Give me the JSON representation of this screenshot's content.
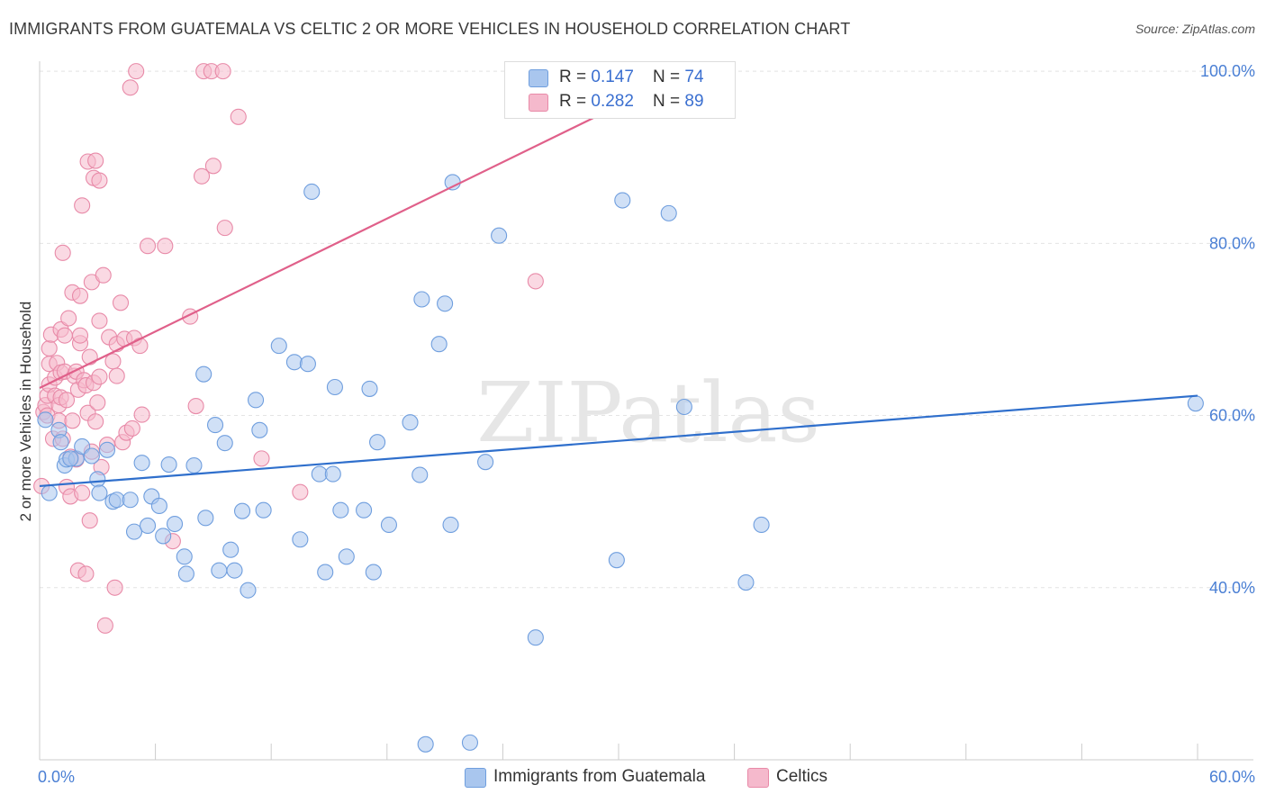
{
  "title": "IMMIGRANTS FROM GUATEMALA VS CELTIC 2 OR MORE VEHICLES IN HOUSEHOLD CORRELATION CHART",
  "source": "Source: ZipAtlas.com",
  "watermark": "ZIPatlas",
  "legend": {
    "rows": [
      {
        "r_label": "R = ",
        "r_value": "0.147",
        "n_label": "N = ",
        "n_value": "74"
      },
      {
        "r_label": "R = ",
        "r_value": "0.282",
        "n_label": "N = ",
        "n_value": "89"
      }
    ]
  },
  "bottom_legend": [
    "Immigrants from Guatemala",
    "Celtics"
  ],
  "colors": {
    "blue_fill": "#a9c6ee",
    "blue_stroke": "#6f9ede",
    "blue_line": "#2f6fcc",
    "pink_fill": "#f5b9cc",
    "pink_stroke": "#e88aa8",
    "pink_line": "#e0608a",
    "axis_text": "#4a7fd4"
  },
  "chart_data": {
    "type": "scatter",
    "title": "IMMIGRANTS FROM GUATEMALA VS CELTIC 2 OR MORE VEHICLES IN HOUSEHOLD CORRELATION CHART",
    "xlabel": "",
    "ylabel": "2 or more Vehicles in Household",
    "xlim": [
      0,
      60
    ],
    "ylim": [
      20,
      102
    ],
    "x_tick_labels": [
      "0.0%",
      "60.0%"
    ],
    "y_ticks": [
      40,
      60,
      80,
      100
    ],
    "y_tick_labels": [
      "40.0%",
      "60.0%",
      "80.0%",
      "100.0%"
    ],
    "grid": true,
    "series": [
      {
        "name": "Immigrants from Guatemala",
        "color": "#6f9ede",
        "r": 0.147,
        "n": 74,
        "trend": [
          [
            0,
            51.8
          ],
          [
            60,
            62.3
          ]
        ],
        "points": [
          [
            0.5,
            51.0
          ],
          [
            1.0,
            58.3
          ],
          [
            1.1,
            56.9
          ],
          [
            1.3,
            54.2
          ],
          [
            1.4,
            54.9
          ],
          [
            1.9,
            55.0
          ],
          [
            2.2,
            56.4
          ],
          [
            2.7,
            55.3
          ],
          [
            3.0,
            52.6
          ],
          [
            3.1,
            51.0
          ],
          [
            3.5,
            56.0
          ],
          [
            3.8,
            50.0
          ],
          [
            4.0,
            50.2
          ],
          [
            4.7,
            50.2
          ],
          [
            4.9,
            46.5
          ],
          [
            5.3,
            54.5
          ],
          [
            5.6,
            47.2
          ],
          [
            5.8,
            50.6
          ],
          [
            6.2,
            49.5
          ],
          [
            6.4,
            46.0
          ],
          [
            6.7,
            54.3
          ],
          [
            7.0,
            47.4
          ],
          [
            7.5,
            43.6
          ],
          [
            7.6,
            41.6
          ],
          [
            8.0,
            54.2
          ],
          [
            8.5,
            64.8
          ],
          [
            8.6,
            48.1
          ],
          [
            9.1,
            58.9
          ],
          [
            9.3,
            42.0
          ],
          [
            9.6,
            56.8
          ],
          [
            9.9,
            44.4
          ],
          [
            10.1,
            42.0
          ],
          [
            10.5,
            48.9
          ],
          [
            10.8,
            39.7
          ],
          [
            11.2,
            61.8
          ],
          [
            11.4,
            58.3
          ],
          [
            11.6,
            49.0
          ],
          [
            12.4,
            68.1
          ],
          [
            13.2,
            66.2
          ],
          [
            13.5,
            45.6
          ],
          [
            13.9,
            66.0
          ],
          [
            14.1,
            86.0
          ],
          [
            14.5,
            53.2
          ],
          [
            14.8,
            41.8
          ],
          [
            15.2,
            53.2
          ],
          [
            15.3,
            63.3
          ],
          [
            15.6,
            49.0
          ],
          [
            15.9,
            43.6
          ],
          [
            16.8,
            49.0
          ],
          [
            17.1,
            63.1
          ],
          [
            17.3,
            41.8
          ],
          [
            17.5,
            56.9
          ],
          [
            18.1,
            47.3
          ],
          [
            19.2,
            59.2
          ],
          [
            19.7,
            53.1
          ],
          [
            19.8,
            73.5
          ],
          [
            20.0,
            21.8
          ],
          [
            20.7,
            68.3
          ],
          [
            21.0,
            73.0
          ],
          [
            21.3,
            47.3
          ],
          [
            21.4,
            87.1
          ],
          [
            22.3,
            22.0
          ],
          [
            23.1,
            54.6
          ],
          [
            23.8,
            80.9
          ],
          [
            25.7,
            34.2
          ],
          [
            29.9,
            43.2
          ],
          [
            30.2,
            85.0
          ],
          [
            32.6,
            83.5
          ],
          [
            33.4,
            61.0
          ],
          [
            36.6,
            40.6
          ],
          [
            37.4,
            47.3
          ],
          [
            59.9,
            61.4
          ],
          [
            0.3,
            59.5
          ],
          [
            1.6,
            55.0
          ]
        ]
      },
      {
        "name": "Celtics",
        "color": "#e88aa8",
        "r": 0.282,
        "n": 89,
        "trend": [
          [
            0,
            63.2
          ],
          [
            30,
            96.0
          ]
        ],
        "points": [
          [
            0.1,
            51.8
          ],
          [
            0.2,
            60.4
          ],
          [
            0.3,
            61.2
          ],
          [
            0.4,
            60.0
          ],
          [
            0.4,
            62.3
          ],
          [
            0.5,
            63.6
          ],
          [
            0.5,
            66.0
          ],
          [
            0.5,
            67.8
          ],
          [
            0.6,
            69.4
          ],
          [
            0.7,
            57.3
          ],
          [
            0.8,
            62.3
          ],
          [
            0.8,
            64.4
          ],
          [
            0.9,
            66.1
          ],
          [
            1.0,
            61.2
          ],
          [
            1.0,
            59.4
          ],
          [
            1.1,
            65.0
          ],
          [
            1.1,
            62.1
          ],
          [
            1.1,
            70.0
          ],
          [
            1.2,
            57.3
          ],
          [
            1.2,
            78.9
          ],
          [
            1.3,
            69.3
          ],
          [
            1.3,
            65.1
          ],
          [
            1.4,
            61.8
          ],
          [
            1.4,
            51.7
          ],
          [
            1.5,
            71.3
          ],
          [
            1.6,
            55.2
          ],
          [
            1.6,
            50.6
          ],
          [
            1.7,
            74.3
          ],
          [
            1.7,
            59.4
          ],
          [
            1.8,
            64.6
          ],
          [
            1.9,
            65.1
          ],
          [
            1.9,
            54.9
          ],
          [
            2.0,
            63.0
          ],
          [
            2.0,
            42.0
          ],
          [
            2.1,
            68.4
          ],
          [
            2.1,
            73.9
          ],
          [
            2.1,
            69.3
          ],
          [
            2.2,
            51.0
          ],
          [
            2.2,
            84.4
          ],
          [
            2.3,
            64.1
          ],
          [
            2.4,
            63.5
          ],
          [
            2.4,
            41.6
          ],
          [
            2.5,
            60.3
          ],
          [
            2.5,
            89.5
          ],
          [
            2.6,
            66.8
          ],
          [
            2.6,
            47.8
          ],
          [
            2.7,
            55.8
          ],
          [
            2.7,
            75.5
          ],
          [
            2.8,
            87.6
          ],
          [
            2.8,
            63.8
          ],
          [
            2.9,
            59.3
          ],
          [
            2.9,
            89.6
          ],
          [
            3.0,
            61.5
          ],
          [
            3.1,
            64.5
          ],
          [
            3.1,
            87.3
          ],
          [
            3.1,
            71.0
          ],
          [
            3.2,
            54.0
          ],
          [
            3.3,
            76.3
          ],
          [
            3.4,
            35.6
          ],
          [
            3.5,
            56.6
          ],
          [
            3.6,
            69.1
          ],
          [
            3.8,
            66.3
          ],
          [
            3.9,
            40.0
          ],
          [
            4.0,
            68.3
          ],
          [
            4.0,
            64.6
          ],
          [
            4.2,
            73.1
          ],
          [
            4.3,
            56.9
          ],
          [
            4.4,
            68.9
          ],
          [
            4.5,
            58.0
          ],
          [
            4.7,
            98.1
          ],
          [
            4.8,
            58.5
          ],
          [
            4.9,
            69.0
          ],
          [
            5.0,
            100.0
          ],
          [
            5.2,
            68.1
          ],
          [
            5.3,
            60.1
          ],
          [
            5.6,
            79.7
          ],
          [
            6.5,
            79.7
          ],
          [
            6.9,
            45.4
          ],
          [
            7.8,
            71.5
          ],
          [
            8.1,
            61.1
          ],
          [
            8.4,
            87.8
          ],
          [
            8.5,
            100.0
          ],
          [
            8.9,
            100.0
          ],
          [
            9.0,
            89.0
          ],
          [
            9.5,
            100.0
          ],
          [
            9.6,
            81.8
          ],
          [
            10.3,
            94.7
          ],
          [
            11.5,
            55.0
          ],
          [
            13.5,
            51.1
          ],
          [
            25.7,
            75.6
          ]
        ]
      }
    ]
  }
}
